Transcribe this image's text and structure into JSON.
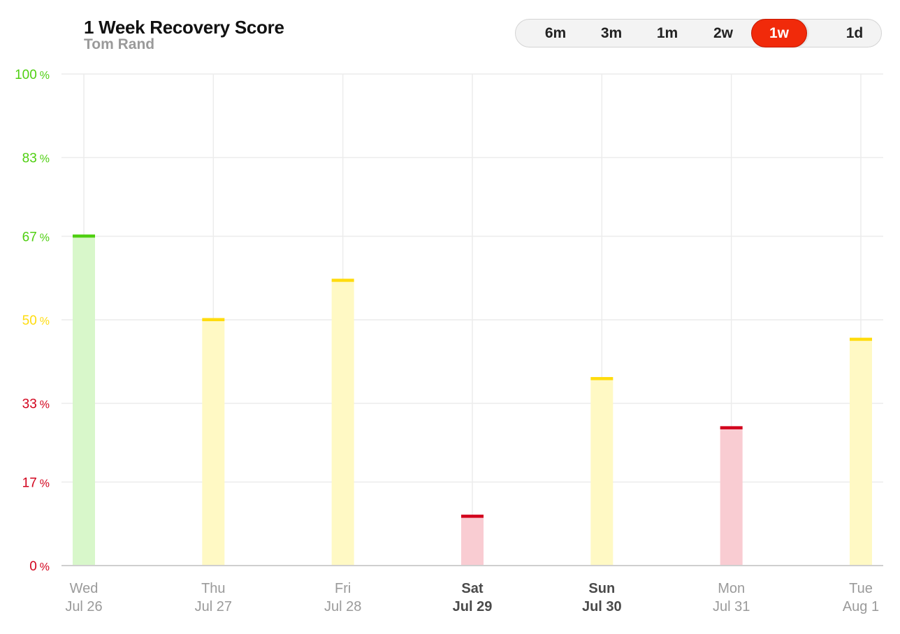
{
  "header": {
    "title": "1 Week Recovery Score",
    "subtitle": "Tom Rand"
  },
  "range_toggle": {
    "options": [
      "6m",
      "3m",
      "1m",
      "2w",
      "1w",
      "1d"
    ],
    "selected": "1w"
  },
  "colors": {
    "green": "#4fcf11",
    "green_fill": "#d8f7ca",
    "yellow": "#ffdc0e",
    "yellow_fill": "#fff9c4",
    "red": "#d2021c",
    "red_fill": "#f9ccd2",
    "accent": "#f12a0a",
    "grid": "#ececec",
    "axis": "#cfcfcf"
  },
  "chart_data": {
    "type": "bar",
    "ylabel": "",
    "xlabel": "",
    "ylim": [
      0,
      100
    ],
    "grid": true,
    "y_ticks": [
      {
        "value": 0,
        "label": "0",
        "unit": "%",
        "color": "red"
      },
      {
        "value": 17,
        "label": "17",
        "unit": "%",
        "color": "red"
      },
      {
        "value": 33,
        "label": "33",
        "unit": "%",
        "color": "red"
      },
      {
        "value": 50,
        "label": "50",
        "unit": "%",
        "color": "yellow"
      },
      {
        "value": 67,
        "label": "67",
        "unit": "%",
        "color": "green"
      },
      {
        "value": 83,
        "label": "83",
        "unit": "%",
        "color": "green"
      },
      {
        "value": 100,
        "label": "100",
        "unit": "%",
        "color": "green"
      }
    ],
    "categories": [
      {
        "day": "Wed",
        "date": "Jul 26",
        "bold": false
      },
      {
        "day": "Thu",
        "date": "Jul 27",
        "bold": false
      },
      {
        "day": "Fri",
        "date": "Jul 28",
        "bold": false
      },
      {
        "day": "Sat",
        "date": "Jul 29",
        "bold": true
      },
      {
        "day": "Sun",
        "date": "Jul 30",
        "bold": true
      },
      {
        "day": "Mon",
        "date": "Jul 31",
        "bold": false
      },
      {
        "day": "Tue",
        "date": "Aug 1",
        "bold": false
      }
    ],
    "values": [
      67,
      50,
      58,
      10,
      38,
      28,
      46
    ],
    "zones": [
      "green",
      "yellow",
      "yellow",
      "red",
      "yellow",
      "red",
      "yellow"
    ]
  }
}
